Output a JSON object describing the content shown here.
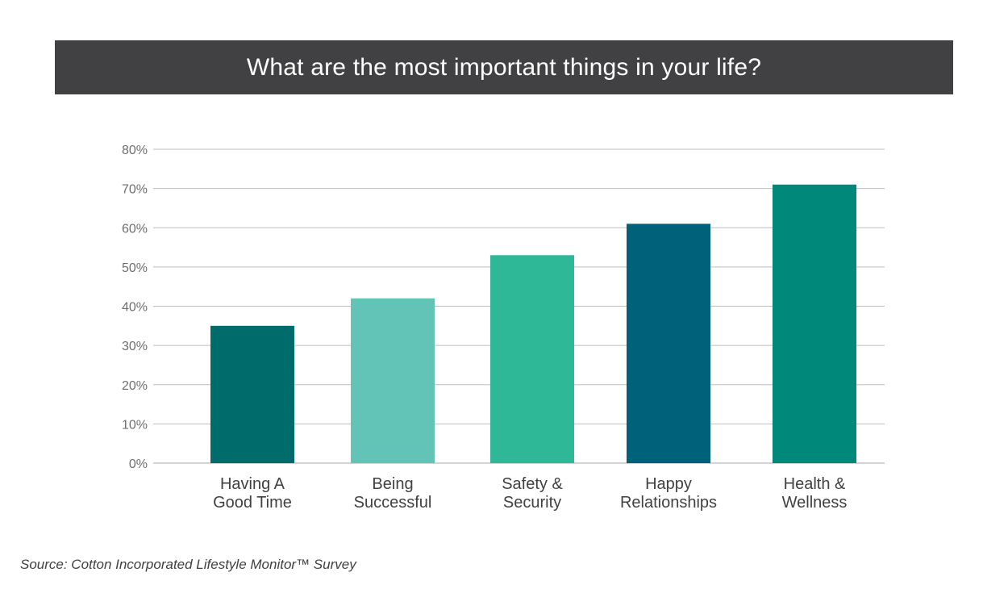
{
  "chart_data": {
    "type": "bar",
    "title": "What are the most important things in your life?",
    "categories": [
      [
        "Having A",
        "Good Time"
      ],
      [
        "Being",
        "Successful"
      ],
      [
        "Safety &",
        "Security"
      ],
      [
        "Happy",
        "Relationships"
      ],
      [
        "Health &",
        "Wellness"
      ]
    ],
    "values": [
      35,
      42,
      53,
      61,
      71
    ],
    "colors": [
      "#006b6b",
      "#62c4b6",
      "#2eb898",
      "#00627a",
      "#00897a"
    ],
    "ylim": [
      0,
      80
    ],
    "yticks": [
      0,
      10,
      20,
      30,
      40,
      50,
      60,
      70,
      80
    ],
    "ytick_labels": [
      "0%",
      "10%",
      "20%",
      "30%",
      "40%",
      "50%",
      "60%",
      "70%",
      "80%"
    ],
    "xlabel": "",
    "ylabel": "",
    "grid": true,
    "legend": "none"
  },
  "source": "Source: Cotton Incorporated Lifestyle Monitor™ Survey"
}
